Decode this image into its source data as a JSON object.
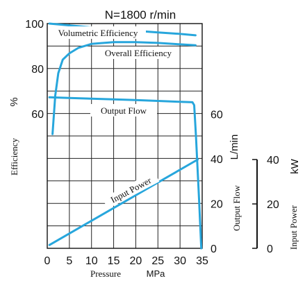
{
  "chart_data": {
    "type": "line",
    "title": "N=1800 r/min",
    "x_axis": {
      "title": "Pressure",
      "unit": "MPa",
      "range": [
        0,
        35
      ],
      "ticks": [
        "0",
        "5",
        "10",
        "15",
        "20",
        "25",
        "30",
        "35"
      ]
    },
    "left_axis": {
      "unit": "%",
      "title": "Efficiency",
      "ticks": [
        "100",
        "80",
        "60"
      ]
    },
    "flow_axis": {
      "unit": "L/min",
      "title": "Output Flow",
      "range": [
        0,
        80
      ],
      "ticks": [
        "60",
        "40",
        "20",
        "0"
      ]
    },
    "power_axis": {
      "unit": "kW",
      "title": "Input Power",
      "range": [
        0,
        40
      ],
      "ticks": [
        "40",
        "20",
        "0"
      ]
    },
    "grid": true,
    "series": [
      {
        "name": "Volumetric Efficiency",
        "axis": "efficiency_percent",
        "x": [
          0.5,
          5,
          10,
          15,
          20,
          25,
          30,
          33.5
        ],
        "y": [
          100,
          99.2,
          98.3,
          97.5,
          96.8,
          96.1,
          95.4,
          94.8
        ]
      },
      {
        "name": "Overall Efficiency",
        "axis": "efficiency_percent",
        "x": [
          1.2,
          1.8,
          2.5,
          3.5,
          5,
          7,
          10,
          15,
          20,
          25,
          30,
          33.5
        ],
        "y": [
          51,
          68,
          78,
          84,
          86.8,
          89.2,
          91,
          91.8,
          91.8,
          91.4,
          90.8,
          90.4
        ]
      },
      {
        "name": "Output Flow",
        "axis": "output_flow_lpm",
        "x": [
          0.5,
          5,
          10,
          15,
          20,
          25,
          30,
          32.8,
          33.2,
          33.6,
          34.3,
          34.8
        ],
        "y": [
          67.5,
          67.2,
          66.9,
          66.6,
          66.3,
          65.9,
          65.5,
          65.3,
          64,
          50,
          22,
          0
        ]
      },
      {
        "name": "Input Power",
        "axis": "input_power_kw",
        "x": [
          0.5,
          34
        ],
        "y": [
          1.5,
          40
        ]
      }
    ]
  }
}
